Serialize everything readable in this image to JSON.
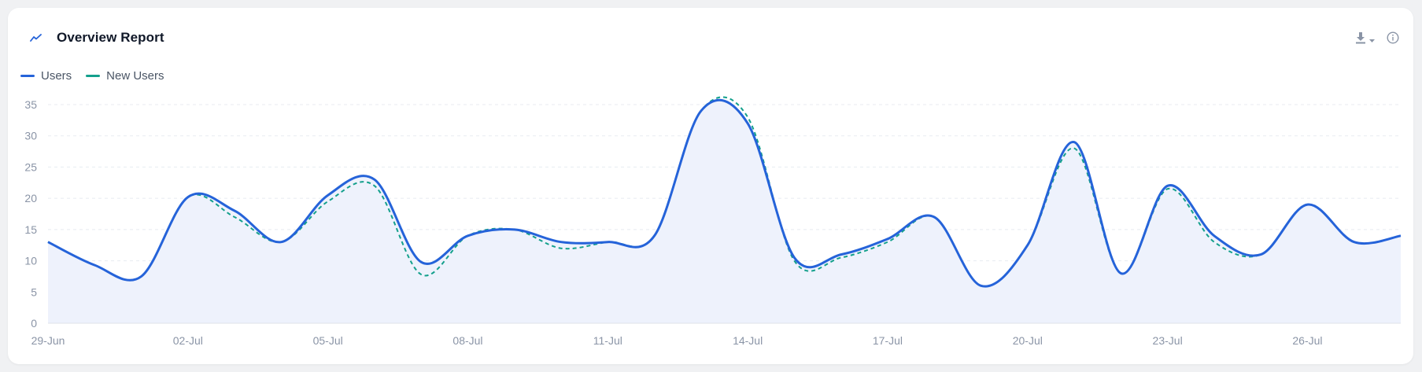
{
  "header": {
    "title": "Overview Report",
    "title_icon": "trend-line-icon",
    "download_icon": "download-icon",
    "info_icon": "info-icon"
  },
  "colors": {
    "users": "#2563d9",
    "new_users": "#14a08c",
    "area_fill": "#eef2fc",
    "grid": "#e8ebf0",
    "axis_text": "#8a94a6"
  },
  "chart_data": {
    "type": "line",
    "title": "",
    "xlabel": "",
    "ylabel": "",
    "legend_position": "top-left",
    "grid": true,
    "ylim": [
      0,
      35
    ],
    "y_ticks": [
      0,
      5,
      10,
      15,
      20,
      25,
      30,
      35
    ],
    "x": [
      "29-Jun",
      "30-Jun",
      "01-Jul",
      "02-Jul",
      "03-Jul",
      "04-Jul",
      "05-Jul",
      "06-Jul",
      "07-Jul",
      "08-Jul",
      "09-Jul",
      "10-Jul",
      "11-Jul",
      "12-Jul",
      "13-Jul",
      "14-Jul",
      "15-Jul",
      "16-Jul",
      "17-Jul",
      "18-Jul",
      "19-Jul",
      "20-Jul",
      "21-Jul",
      "22-Jul",
      "23-Jul",
      "24-Jul",
      "25-Jul",
      "26-Jul",
      "27-Jul",
      "28-Jul"
    ],
    "x_tick_labels": [
      "29-Jun",
      "02-Jul",
      "05-Jul",
      "08-Jul",
      "11-Jul",
      "14-Jul",
      "17-Jul",
      "20-Jul",
      "23-Jul",
      "26-Jul"
    ],
    "series": [
      {
        "name": "Users",
        "values": [
          13,
          9.3,
          7.5,
          20.2,
          18,
          13,
          20.5,
          23,
          9.8,
          14,
          15,
          13,
          13,
          14,
          34,
          32,
          10.5,
          11,
          13.5,
          17,
          6,
          12.5,
          29,
          8,
          22,
          14,
          11,
          19,
          13,
          14
        ]
      },
      {
        "name": "New Users",
        "values": [
          13,
          9.3,
          7.5,
          20.2,
          17,
          13,
          19.5,
          22,
          7.8,
          14,
          15,
          12,
          13,
          14,
          34,
          33,
          10,
          10.5,
          13,
          17,
          6,
          12.5,
          28,
          8,
          21.5,
          13,
          11,
          19,
          13,
          14
        ]
      }
    ]
  }
}
